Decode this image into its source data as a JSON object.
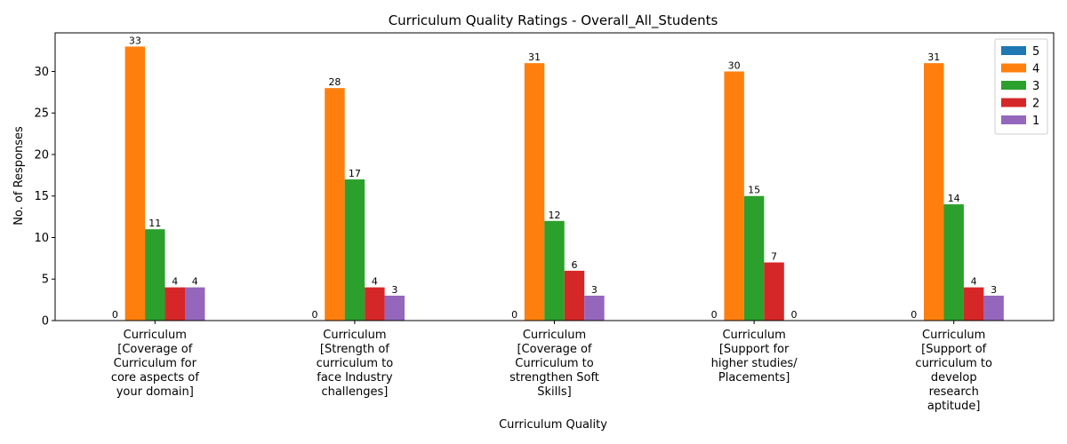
{
  "chart_data": {
    "type": "bar",
    "title": "Curriculum Quality Ratings - Overall_All_Students",
    "xlabel": "Curriculum Quality",
    "ylabel": "No. of Responses",
    "ylim": [
      0,
      34.65
    ],
    "yticks": [
      0,
      5,
      10,
      15,
      20,
      25,
      30
    ],
    "grid": false,
    "legend_position": "top-right",
    "categories": [
      [
        "Curriculum",
        "[Coverage of",
        "Curriculum for",
        "core aspects of",
        "your domain]"
      ],
      [
        "Curriculum",
        "[Strength of",
        "curriculum to",
        "face Industry",
        "challenges]"
      ],
      [
        "Curriculum",
        "[Coverage of",
        "Curriculum to",
        "strengthen Soft",
        "Skills]"
      ],
      [
        "Curriculum",
        "[Support for",
        "higher studies/",
        "Placements]"
      ],
      [
        "Curriculum",
        "[Support of",
        "curriculum to",
        "develop",
        "research",
        "aptitude]"
      ]
    ],
    "series": [
      {
        "name": "5",
        "color": "#1f77b4",
        "values": [
          0,
          0,
          0,
          0,
          0
        ]
      },
      {
        "name": "4",
        "color": "#ff7f0e",
        "values": [
          33,
          28,
          31,
          30,
          31
        ]
      },
      {
        "name": "3",
        "color": "#2ca02c",
        "values": [
          11,
          17,
          12,
          15,
          14
        ]
      },
      {
        "name": "2",
        "color": "#d62728",
        "values": [
          4,
          4,
          6,
          7,
          4
        ]
      },
      {
        "name": "1",
        "color": "#9467bd",
        "values": [
          4,
          3,
          3,
          0,
          3
        ]
      }
    ]
  }
}
